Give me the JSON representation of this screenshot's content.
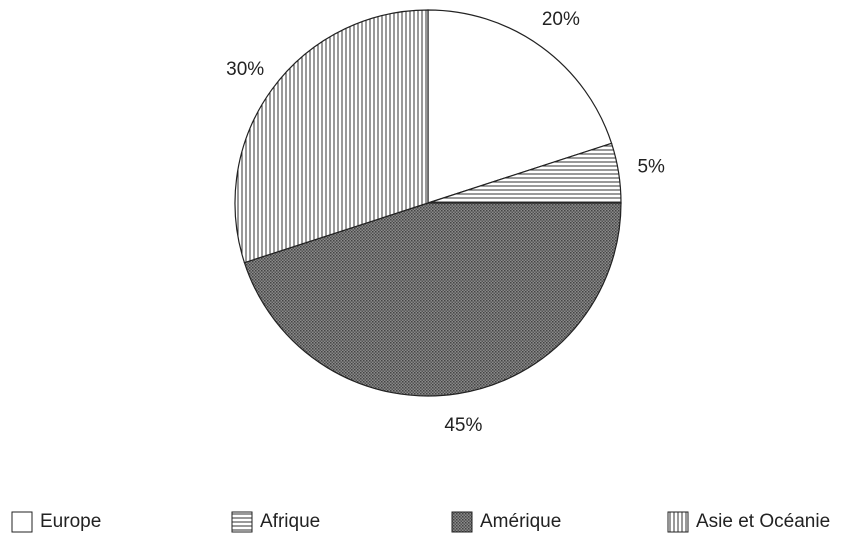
{
  "chart_data": {
    "type": "pie",
    "categories": [
      "Europe",
      "Afrique",
      "Amérique",
      "Asie et Océanie"
    ],
    "values": [
      20,
      5,
      45,
      30
    ],
    "value_labels": [
      "20%",
      "5%",
      "45%",
      "30%"
    ],
    "patterns": [
      "none",
      "horizontal",
      "dots",
      "vertical"
    ],
    "start_angle": 0,
    "direction": "clockwise",
    "legend": "bottom"
  }
}
